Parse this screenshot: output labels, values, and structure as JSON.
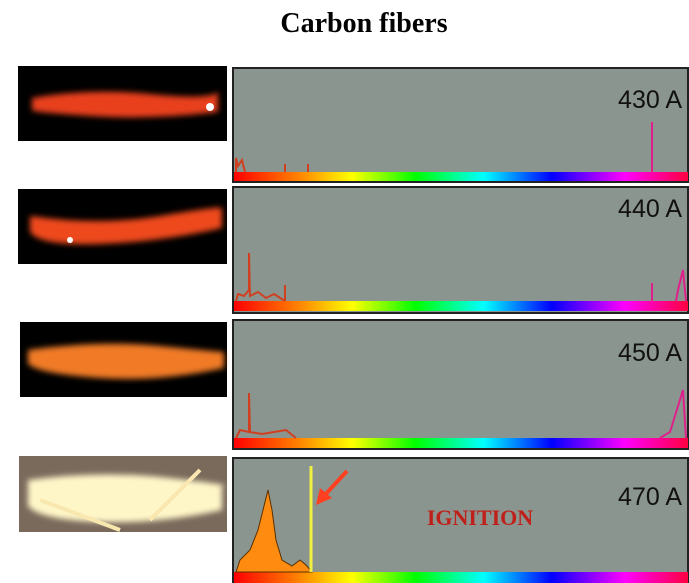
{
  "title": "Carbon fibers",
  "panels": [
    {
      "label": "430 A"
    },
    {
      "label": "440 A"
    },
    {
      "label": "450 A"
    },
    {
      "label": "470 A"
    }
  ],
  "annotation": "IGNITION"
}
